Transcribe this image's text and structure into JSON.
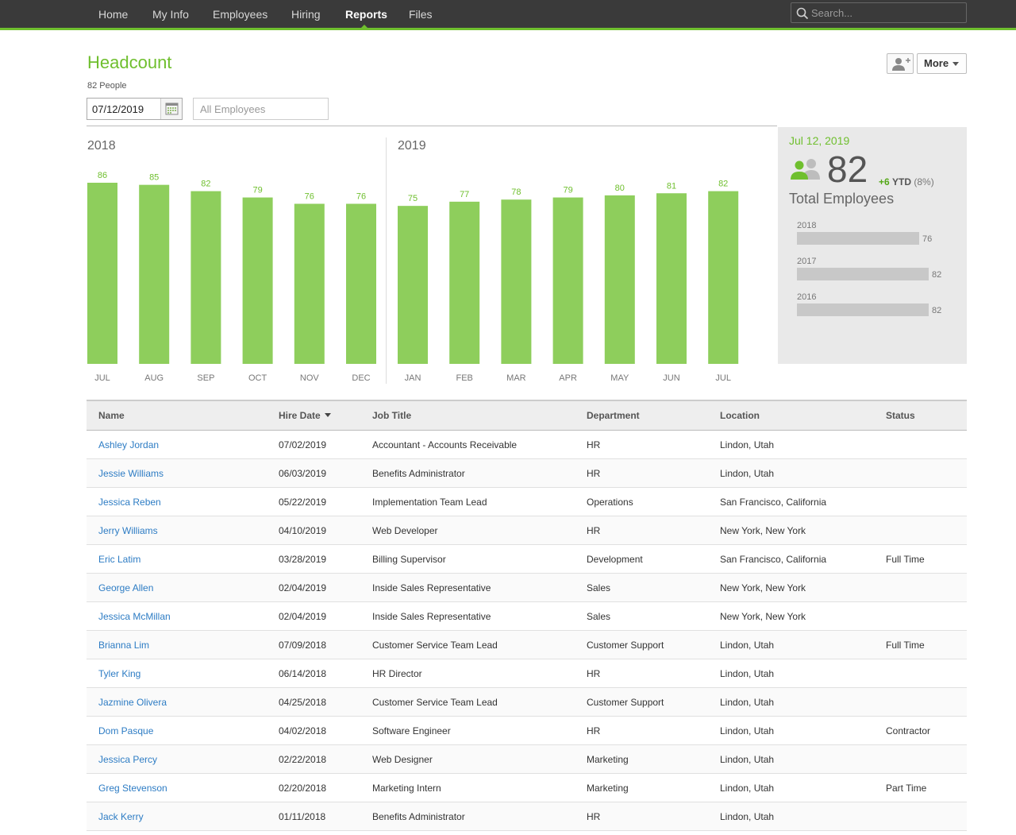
{
  "nav": {
    "items": [
      {
        "label": "Home",
        "active": false
      },
      {
        "label": "My Info",
        "active": false
      },
      {
        "label": "Employees",
        "active": false
      },
      {
        "label": "Hiring",
        "active": false
      },
      {
        "label": "Reports",
        "active": true
      },
      {
        "label": "Files",
        "active": false
      }
    ],
    "search_placeholder": "Search..."
  },
  "header": {
    "title": "Headcount",
    "people_count": "82 People",
    "more_label": "More",
    "date_value": "07/12/2019",
    "filter_placeholder": "All Employees"
  },
  "colors": {
    "accent": "#6fbf2e",
    "bar": "#8ece5c",
    "link": "#2d7cc4",
    "nav_bg": "#3a3a3a"
  },
  "chart_data": {
    "type": "bar",
    "groups": [
      {
        "year": "2018",
        "categories": [
          "JUL",
          "AUG",
          "SEP",
          "OCT",
          "NOV",
          "DEC"
        ],
        "values": [
          86,
          85,
          82,
          79,
          76,
          76
        ]
      },
      {
        "year": "2019",
        "categories": [
          "JAN",
          "FEB",
          "MAR",
          "APR",
          "MAY",
          "JUN",
          "JUL"
        ],
        "values": [
          75,
          77,
          78,
          79,
          80,
          81,
          82
        ]
      }
    ],
    "ylim": [
      0,
      86
    ],
    "data_labels": true,
    "grid": false
  },
  "summary": {
    "date": "Jul 12, 2019",
    "count": "82",
    "ytd_change": "+6",
    "ytd_label": "YTD",
    "ytd_pct": "(8%)",
    "label": "Total Employees",
    "history": [
      {
        "year": "2018",
        "value": 76
      },
      {
        "year": "2017",
        "value": 82
      },
      {
        "year": "2016",
        "value": 82
      }
    ]
  },
  "table": {
    "columns": [
      "Name",
      "Hire Date",
      "Job Title",
      "Department",
      "Location",
      "Status"
    ],
    "sorted_column": "Hire Date",
    "rows": [
      [
        "Ashley Jordan",
        "07/02/2019",
        "Accountant - Accounts Receivable",
        "HR",
        "Lindon, Utah",
        ""
      ],
      [
        "Jessie Williams",
        "06/03/2019",
        "Benefits Administrator",
        "HR",
        "Lindon, Utah",
        ""
      ],
      [
        "Jessica Reben",
        "05/22/2019",
        "Implementation Team Lead",
        "Operations",
        "San Francisco, California",
        ""
      ],
      [
        "Jerry Williams",
        "04/10/2019",
        "Web Developer",
        "HR",
        "New York, New York",
        ""
      ],
      [
        "Eric Latim",
        "03/28/2019",
        "Billing Supervisor",
        "Development",
        "San Francisco, California",
        "Full Time"
      ],
      [
        "George Allen",
        "02/04/2019",
        "Inside Sales Representative",
        "Sales",
        "New York, New York",
        ""
      ],
      [
        "Jessica McMillan",
        "02/04/2019",
        "Inside Sales Representative",
        "Sales",
        "New York, New York",
        ""
      ],
      [
        "Brianna Lim",
        "07/09/2018",
        "Customer Service Team Lead",
        "Customer Support",
        "Lindon, Utah",
        "Full Time"
      ],
      [
        "Tyler King",
        "06/14/2018",
        "HR Director",
        "HR",
        "Lindon, Utah",
        ""
      ],
      [
        "Jazmine Olivera",
        "04/25/2018",
        "Customer Service Team Lead",
        "Customer Support",
        "Lindon, Utah",
        ""
      ],
      [
        "Dom Pasque",
        "04/02/2018",
        "Software Engineer",
        "HR",
        "Lindon, Utah",
        "Contractor"
      ],
      [
        "Jessica Percy",
        "02/22/2018",
        "Web Designer",
        "Marketing",
        "Lindon, Utah",
        ""
      ],
      [
        "Greg Stevenson",
        "02/20/2018",
        "Marketing Intern",
        "Marketing",
        "Lindon, Utah",
        "Part Time"
      ],
      [
        "Jack Kerry",
        "01/11/2018",
        "Benefits Administrator",
        "HR",
        "Lindon, Utah",
        ""
      ]
    ]
  }
}
